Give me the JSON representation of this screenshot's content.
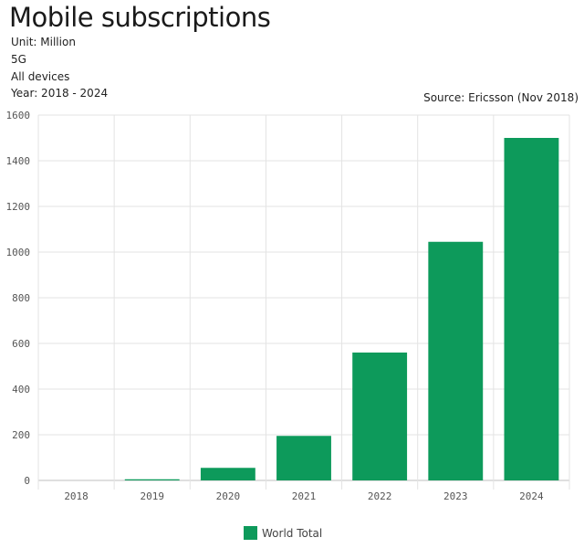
{
  "header": {
    "title": "Mobile subscriptions",
    "unit": "Unit: Million",
    "technology": "5G",
    "devices": "All devices",
    "years": "Year: 2018 - 2024",
    "source": "Source: Ericsson (Nov 2018)"
  },
  "colors": {
    "bar": "#0d9a5b",
    "grid": "#e3e3e3",
    "axis": "#bfbfbf"
  },
  "chart_data": {
    "type": "bar",
    "categories": [
      "2018",
      "2019",
      "2020",
      "2021",
      "2022",
      "2023",
      "2024"
    ],
    "series": [
      {
        "name": "World Total",
        "values": [
          0,
          5,
          55,
          195,
          560,
          1045,
          1500
        ]
      }
    ],
    "ylim": [
      0,
      1600
    ],
    "yticks": [
      0,
      200,
      400,
      600,
      800,
      1000,
      1200,
      1400,
      1600
    ],
    "grid": true,
    "legend_position": "bottom-center"
  }
}
